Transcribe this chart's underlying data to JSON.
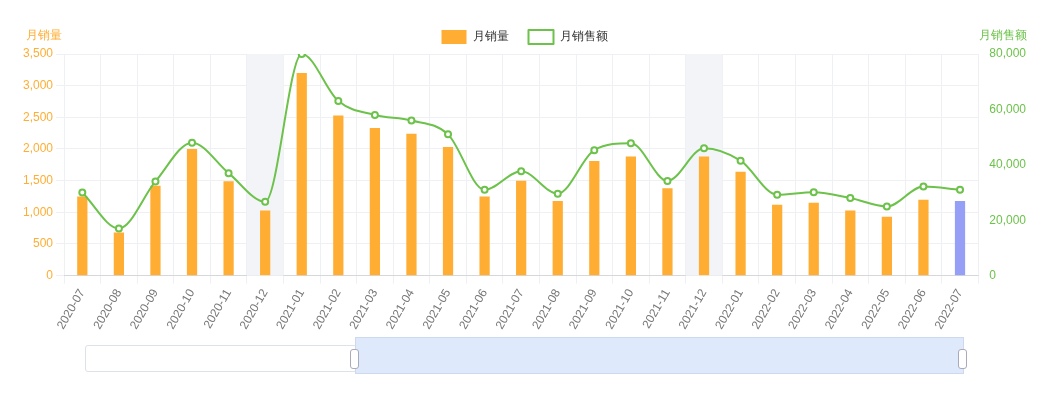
{
  "chart_data": {
    "type": "bar",
    "categories": [
      "2020-07",
      "2020-08",
      "2020-09",
      "2020-10",
      "2020-11",
      "2020-12",
      "2021-01",
      "2021-02",
      "2021-03",
      "2021-04",
      "2021-05",
      "2021-06",
      "2021-07",
      "2021-08",
      "2021-09",
      "2021-10",
      "2021-11",
      "2021-12",
      "2022-01",
      "2022-02",
      "2022-03",
      "2022-04",
      "2022-05",
      "2022-06",
      "2022-07"
    ],
    "series": [
      {
        "name": "月销量",
        "color": "#ffad33",
        "colors": [
          "#ffad33",
          "#ffad33",
          "#ffad33",
          "#ffad33",
          "#ffad33",
          "#ffad33",
          "#ffad33",
          "#ffad33",
          "#ffad33",
          "#ffad33",
          "#ffad33",
          "#ffad33",
          "#ffad33",
          "#ffad33",
          "#ffad33",
          "#ffad33",
          "#ffad33",
          "#ffad33",
          "#ffad33",
          "#ffad33",
          "#ffad33",
          "#ffad33",
          "#ffad33",
          "#ffad33",
          "#949ff5"
        ],
        "values": [
          1250,
          680,
          1420,
          2000,
          1490,
          1030,
          3200,
          2530,
          2330,
          2240,
          2030,
          1250,
          1500,
          1180,
          1810,
          1880,
          1380,
          1880,
          1640,
          1120,
          1150,
          1030,
          930,
          1200,
          1180
        ]
      },
      {
        "name": "月销售额",
        "type": "line",
        "axis": "y2",
        "color": "#6cc24a",
        "marker": "circle",
        "values": [
          30000,
          17000,
          34000,
          48000,
          37000,
          26700,
          80000,
          63000,
          58000,
          56000,
          51000,
          31000,
          37700,
          29600,
          45300,
          47800,
          34200,
          46000,
          41500,
          29200,
          30100,
          28000,
          25000,
          32200,
          31000
        ]
      }
    ],
    "ylabel": "月销量",
    "y2label": "月销售额",
    "ylim": [
      0,
      3500
    ],
    "yticks": [
      0,
      500,
      {
        "value": 1000,
        "label": "1,000"
      },
      {
        "value": 1500,
        "label": "1,500"
      },
      {
        "value": 2000,
        "label": "2,000"
      },
      {
        "value": 2500,
        "label": "2,500"
      },
      {
        "value": 3000,
        "label": "3,000"
      },
      {
        "value": 3500,
        "label": "3,500"
      }
    ],
    "y2lim": [
      0,
      80000
    ],
    "y2ticks": [
      0,
      {
        "value": 20000,
        "label": "20,000"
      },
      {
        "value": 40000,
        "label": "40,000"
      },
      {
        "value": 60000,
        "label": "60,000"
      },
      {
        "value": 80000,
        "label": "80,000"
      }
    ],
    "bands": [
      {
        "axis": "x",
        "from": "2020-12",
        "to": "2020-12",
        "color": "#f3f4f8"
      },
      {
        "axis": "x",
        "from": "2021-12",
        "to": "2021-12",
        "color": "#f3f4f8"
      }
    ],
    "grid": true,
    "legend": "top"
  }
}
